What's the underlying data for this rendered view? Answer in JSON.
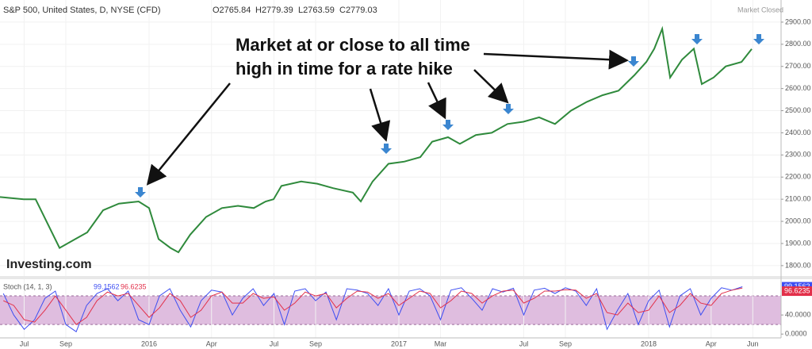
{
  "chart_data": [
    {
      "type": "line",
      "title": "S&P 500, United States, D, NYSE (CFD)",
      "ohlc": [
        "O2765.84",
        "H2779.39",
        "L2763.59",
        "C2779.03"
      ],
      "status": "Market Closed",
      "annotation": [
        "Market at or close to all time",
        "high in time for a rate hike"
      ],
      "logo": "Investing.com",
      "xlim": [
        4.84,
        42.36
      ],
      "ylim": [
        1753,
        3000
      ],
      "yticks": [
        {
          "value": 1800,
          "label": "1800.00"
        },
        {
          "value": 1900,
          "label": "1900.00"
        },
        {
          "value": 2000,
          "label": "2000.00"
        },
        {
          "value": 2100,
          "label": "2100.00"
        },
        {
          "value": 2200,
          "label": "2200.00"
        },
        {
          "value": 2300,
          "label": "2300.00"
        },
        {
          "value": 2400,
          "label": "2400.00"
        },
        {
          "value": 2500,
          "label": "2500.00"
        },
        {
          "value": 2600,
          "label": "2600.00"
        },
        {
          "value": 2700,
          "label": "2700.00"
        },
        {
          "value": 2800,
          "label": "2800.00"
        },
        {
          "value": 2900,
          "label": "2900.00"
        }
      ],
      "grid": true,
      "x": [
        4.84,
        5.98,
        6.55,
        7.7,
        8.46,
        9.03,
        9.79,
        10.55,
        11.5,
        12,
        12.46,
        13.03,
        13.41,
        13.98,
        14.74,
        15.5,
        16.27,
        17.03,
        17.6,
        17.98,
        18.36,
        19.31,
        20.08,
        20.84,
        21.79,
        22.17,
        22.74,
        23.5,
        24.27,
        25.03,
        25.6,
        26.36,
        26.93,
        27.7,
        28.46,
        29.22,
        29.98,
        30.74,
        31.5,
        32.27,
        33.03,
        33.79,
        34.55,
        35.31,
        35.89,
        36.27,
        36.65,
        37.03,
        37.6,
        38.17,
        38.55,
        39.12,
        39.7,
        40.46,
        40.95
      ],
      "series": [
        {
          "color": "#2f8a3c",
          "values": [
            2110,
            2100,
            2100,
            1880,
            1920,
            1950,
            2050,
            2080,
            2090,
            2060,
            1920,
            1880,
            1860,
            1940,
            2020,
            2060,
            2070,
            2060,
            2090,
            2100,
            2160,
            2180,
            2170,
            2150,
            2130,
            2090,
            2180,
            2260,
            2270,
            2290,
            2360,
            2380,
            2350,
            2390,
            2400,
            2440,
            2450,
            2470,
            2440,
            2500,
            2540,
            2570,
            2590,
            2660,
            2720,
            2780,
            2870,
            2650,
            2730,
            2780,
            2620,
            2650,
            2700,
            2720,
            2779.03
          ]
        }
      ]
    },
    {
      "type": "line",
      "title": "Stoch (14, 1, 3)",
      "xlim": [
        4.84,
        42.36
      ],
      "ylim": [
        -8,
        115
      ],
      "yticks": [
        {
          "value": 0,
          "label": "0.0000"
        },
        {
          "value": 40,
          "label": "40.0000"
        }
      ],
      "band": [
        20,
        80
      ],
      "band_color": "#dfbddf",
      "last_value_boxes": true,
      "xticks": [
        {
          "value": 6,
          "label": "Jul"
        },
        {
          "value": 8,
          "label": "Sep"
        },
        {
          "value": 12,
          "label": "2016"
        },
        {
          "value": 15,
          "label": "Apr"
        },
        {
          "value": 18,
          "label": "Jul"
        },
        {
          "value": 20,
          "label": "Sep"
        },
        {
          "value": 24,
          "label": "2017"
        },
        {
          "value": 26,
          "label": "Mar"
        },
        {
          "value": 30,
          "label": "Jul"
        },
        {
          "value": 32,
          "label": "Sep"
        },
        {
          "value": 36,
          "label": "2018"
        },
        {
          "value": 39,
          "label": "Apr"
        },
        {
          "value": 41,
          "label": "Jun"
        }
      ],
      "x": [
        5,
        5.5,
        6,
        6.5,
        7,
        7.5,
        8,
        8.5,
        9,
        9.5,
        10,
        10.5,
        11,
        11.5,
        12,
        12.5,
        13,
        13.5,
        14,
        14.5,
        15,
        15.5,
        16,
        16.5,
        17,
        17.5,
        18,
        18.5,
        19,
        19.5,
        20,
        20.5,
        21,
        21.5,
        22,
        22.5,
        23,
        23.5,
        24,
        24.5,
        25,
        25.5,
        26,
        26.5,
        27,
        27.5,
        28,
        28.5,
        29,
        29.5,
        30,
        30.5,
        31,
        31.5,
        32,
        32.5,
        33,
        33.5,
        34,
        34.5,
        35,
        35.5,
        36,
        36.5,
        37,
        37.5,
        38,
        38.5,
        39,
        39.5,
        40,
        40.5
      ],
      "series": [
        {
          "color": "#3d4ef2",
          "values": [
            85,
            40,
            10,
            30,
            75,
            90,
            20,
            5,
            60,
            85,
            95,
            70,
            90,
            30,
            20,
            80,
            95,
            50,
            15,
            70,
            92,
            88,
            40,
            75,
            95,
            60,
            85,
            20,
            90,
            95,
            70,
            88,
            30,
            95,
            92,
            85,
            60,
            95,
            40,
            90,
            95,
            80,
            30,
            92,
            97,
            75,
            50,
            95,
            88,
            96,
            40,
            92,
            96,
            85,
            97,
            90,
            60,
            95,
            10,
            50,
            85,
            20,
            70,
            92,
            15,
            80,
            95,
            40,
            75,
            97,
            92,
            99.1562
          ]
        },
        {
          "color": "#e2304a",
          "values": [
            70,
            60,
            30,
            25,
            50,
            80,
            50,
            20,
            35,
            70,
            88,
            80,
            85,
            60,
            35,
            55,
            85,
            70,
            35,
            50,
            80,
            88,
            65,
            65,
            85,
            75,
            78,
            50,
            65,
            88,
            80,
            85,
            55,
            75,
            90,
            88,
            75,
            85,
            60,
            75,
            90,
            85,
            55,
            70,
            90,
            85,
            65,
            80,
            90,
            92,
            65,
            75,
            90,
            90,
            93,
            92,
            75,
            85,
            45,
            40,
            65,
            45,
            50,
            80,
            45,
            60,
            85,
            65,
            60,
            85,
            92,
            96.6235
          ]
        }
      ]
    }
  ]
}
